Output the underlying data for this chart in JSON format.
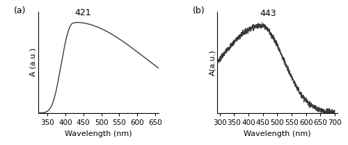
{
  "panel_a": {
    "label": "(a)",
    "xlabel": "Wavelength (nm)",
    "ylabel": "A (a.u.)",
    "xlim": [
      325,
      660
    ],
    "xticks": [
      350,
      400,
      450,
      500,
      550,
      600,
      650
    ],
    "peak_wavelength": 421,
    "peak_label": "421"
  },
  "panel_b": {
    "label": "(b)",
    "xlabel": "Wavelength (nm)",
    "ylabel": "A(a.u.)",
    "xlim": [
      290,
      710
    ],
    "xticks": [
      300,
      350,
      400,
      450,
      500,
      550,
      600,
      650,
      700
    ],
    "peak_wavelength": 443,
    "peak_label": "443"
  },
  "background_color": "#ffffff",
  "line_color": "#3a3a3a"
}
